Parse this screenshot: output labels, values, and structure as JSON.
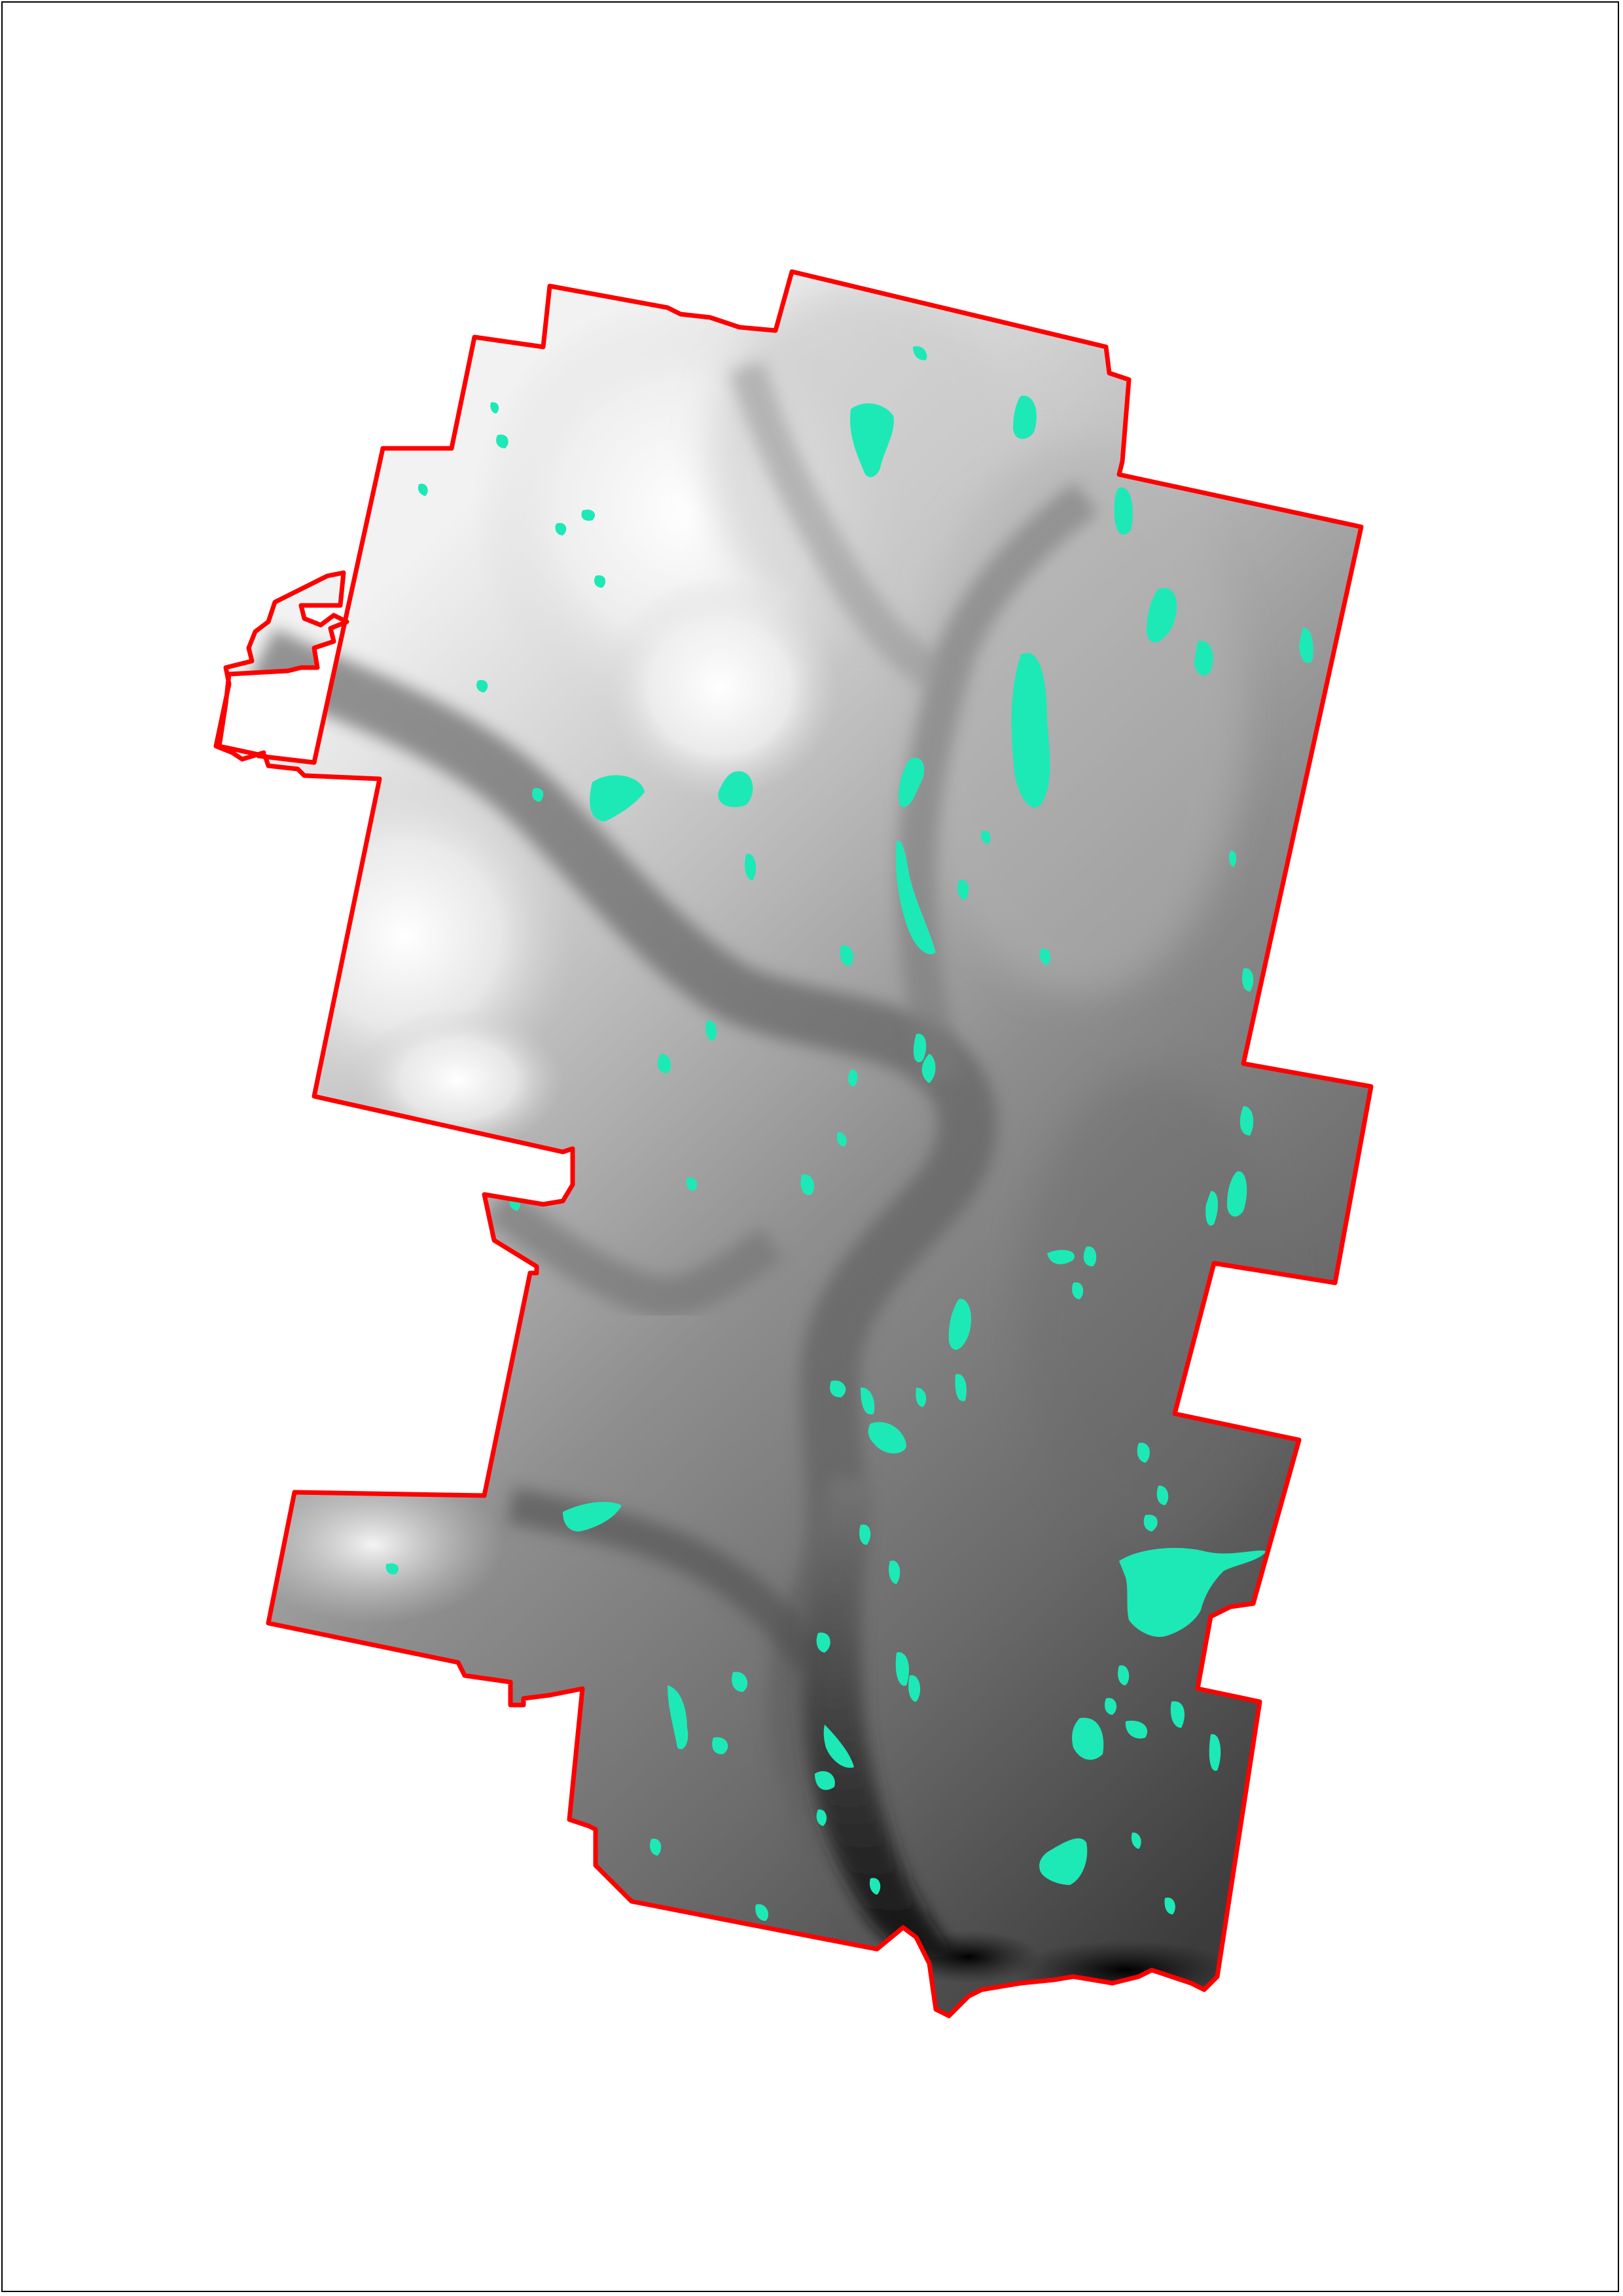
{
  "map": {
    "kind": "elevation-raster-with-water-bodies",
    "colors": {
      "background": "#ffffff",
      "frame": "#000000",
      "boundary": "#ff0000",
      "water": "#1de9b6",
      "elevation_high": "#ffffff",
      "elevation_mid": "#8a8a8a",
      "elevation_low": "#0a0a0a"
    },
    "legend": "none",
    "title": "",
    "scale_bar": "none",
    "north_arrow": "none"
  }
}
